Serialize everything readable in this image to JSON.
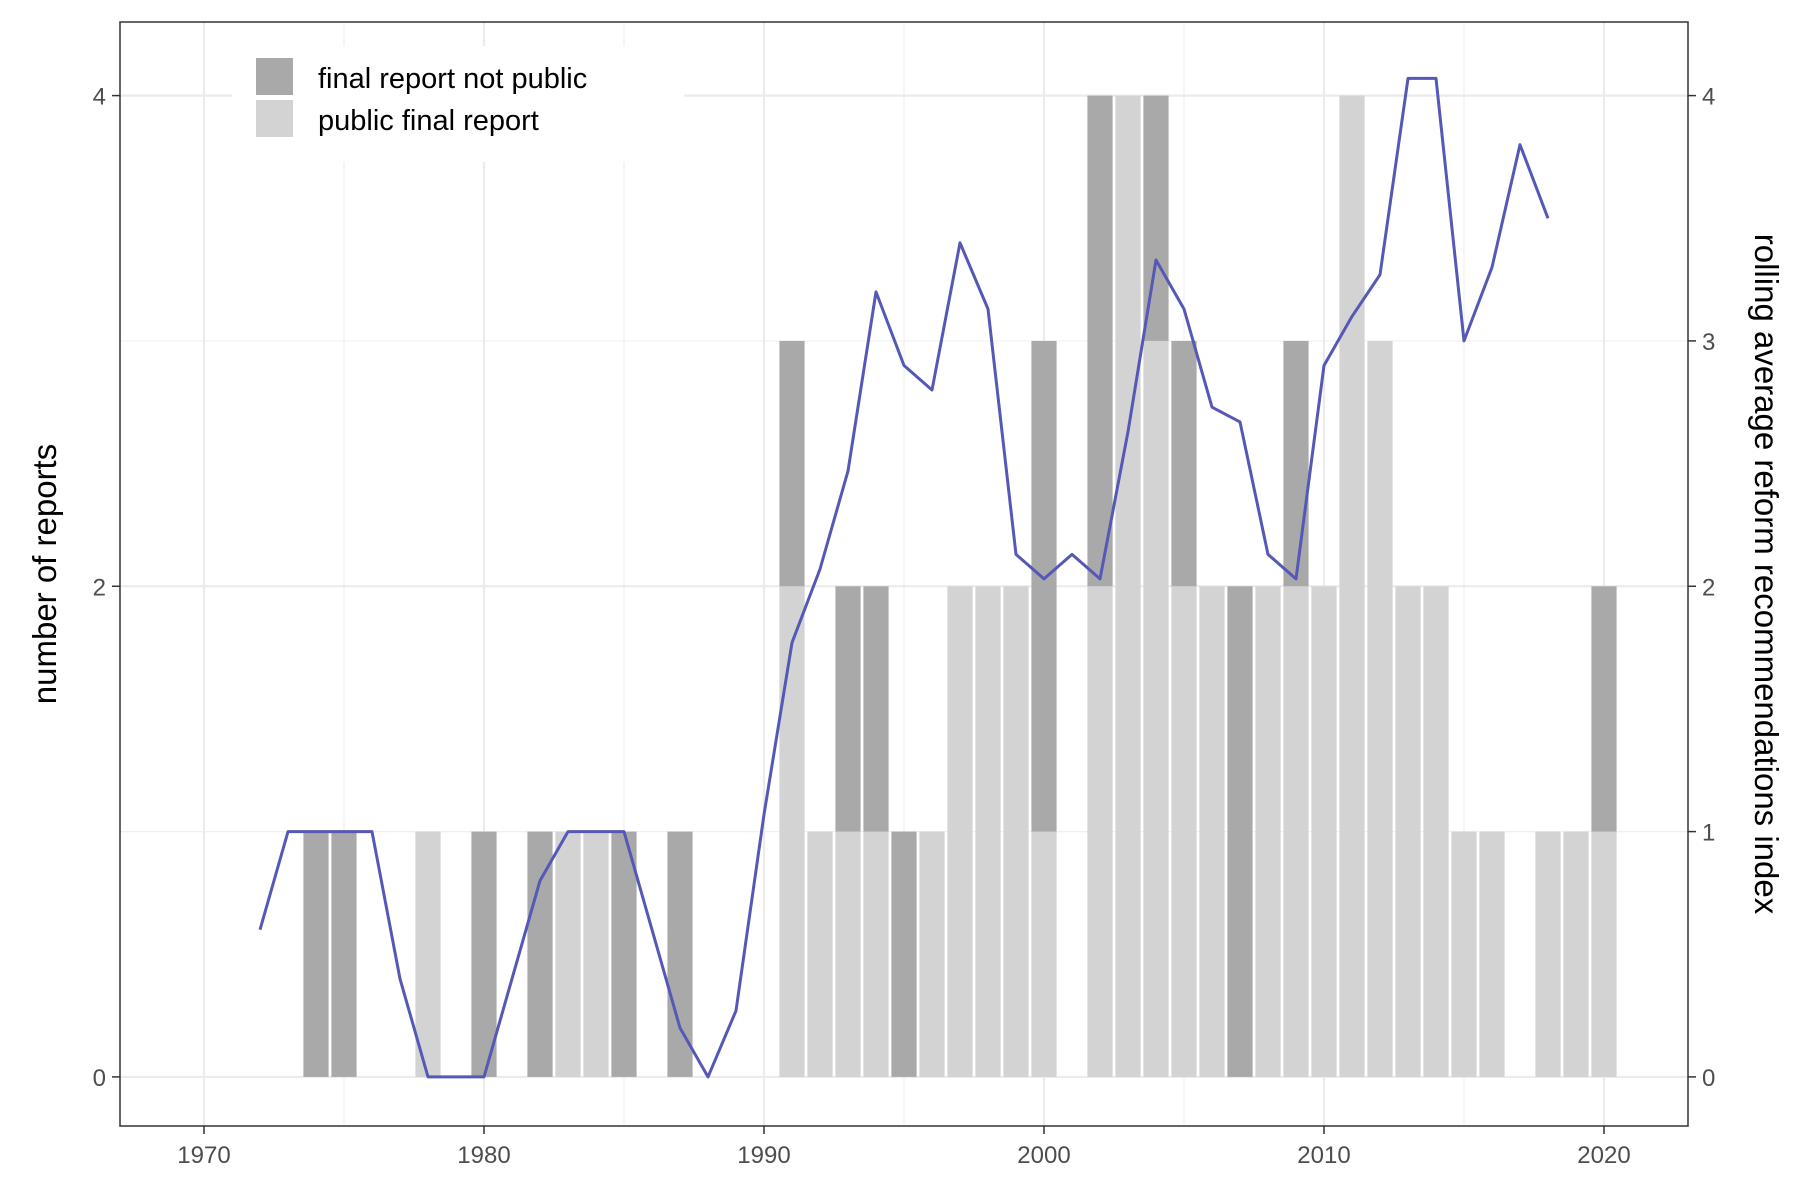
{
  "chart_data": {
    "type": "bar",
    "stacked": true,
    "x_years": [
      1974,
      1975,
      1978,
      1980,
      1982,
      1983,
      1984,
      1985,
      1987,
      1991,
      1992,
      1993,
      1994,
      1995,
      1996,
      1997,
      1998,
      1999,
      2000,
      2002,
      2003,
      2004,
      2005,
      2006,
      2007,
      2008,
      2009,
      2010,
      2011,
      2012,
      2013,
      2014,
      2015,
      2016,
      2018,
      2019,
      2020
    ],
    "series": [
      {
        "name": "final report not public",
        "color": "#a9a9a9",
        "values": [
          1,
          1,
          0,
          1,
          1,
          0,
          0,
          1,
          1,
          1,
          0,
          1,
          1,
          1,
          0,
          0,
          0,
          0,
          2,
          2,
          0,
          1,
          1,
          0,
          2,
          0,
          1,
          0,
          0,
          0,
          0,
          0,
          0,
          0,
          0,
          0,
          1
        ]
      },
      {
        "name": "public final report",
        "color": "#d3d3d3",
        "values": [
          0,
          0,
          1,
          0,
          0,
          1,
          1,
          0,
          0,
          2,
          1,
          1,
          1,
          0,
          1,
          2,
          2,
          2,
          1,
          2,
          4,
          3,
          2,
          2,
          0,
          2,
          2,
          2,
          4,
          3,
          2,
          2,
          1,
          1,
          1,
          1,
          1
        ]
      }
    ],
    "line": {
      "color": "#5558b6",
      "x": [
        1972,
        1973,
        1974,
        1975,
        1976,
        1977,
        1978,
        1979,
        1980,
        1981,
        1982,
        1983,
        1984,
        1985,
        1986,
        1987,
        1988,
        1989,
        1990,
        1991,
        1992,
        1993,
        1994,
        1995,
        1996,
        1997,
        1998,
        1999,
        2000,
        2001,
        2002,
        2003,
        2004,
        2005,
        2006,
        2007,
        2008,
        2009,
        2010,
        2011,
        2012,
        2013,
        2014,
        2015,
        2016,
        2017,
        2018
      ],
      "y": [
        0.6,
        1,
        1,
        1,
        1,
        0.4,
        0,
        0,
        0,
        0.4,
        0.8,
        1,
        1,
        1,
        0.6,
        0.2,
        0,
        0.27,
        1.07,
        1.77,
        2.07,
        2.47,
        3.2,
        2.9,
        2.8,
        3.4,
        3.13,
        2.13,
        2.03,
        2.13,
        2.03,
        2.63,
        3.33,
        3.13,
        2.73,
        2.67,
        2.13,
        2.03,
        2.9,
        3.1,
        3.27,
        4.07,
        4.07,
        3,
        3.3,
        3.8,
        3.5
      ]
    },
    "xlim": [
      1967,
      2023
    ],
    "x_ticks": [
      1970,
      1980,
      1990,
      2000,
      2010,
      2020
    ],
    "ylim": [
      -0.2,
      4.3
    ],
    "y_ticks": [
      0,
      2,
      4
    ],
    "y_ticks_right": [
      0,
      1,
      2,
      3,
      4
    ],
    "ylabel": "number of reports",
    "ylabel_right": "rolling average reform recommendations index",
    "xlabel": "",
    "grid": true,
    "legend_position": "top-left"
  }
}
